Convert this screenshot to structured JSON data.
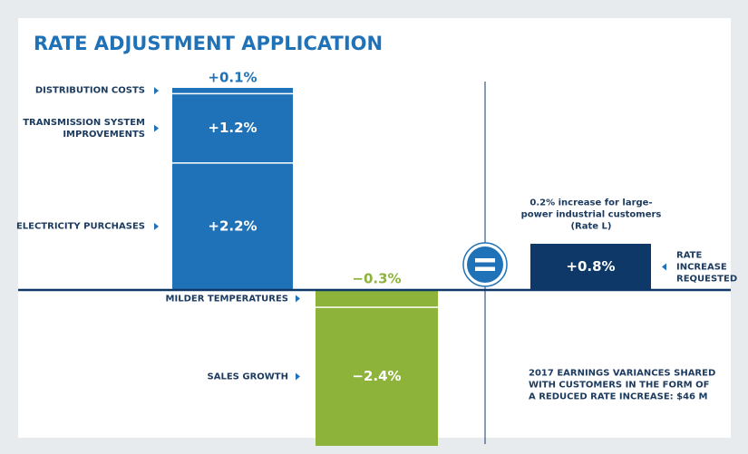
{
  "chart_data": {
    "type": "waterfall",
    "title": "RATE ADJUSTMENT APPLICATION",
    "ylim": [
      -2.7,
      3.5
    ],
    "increases": {
      "categories": [
        "ELECTRICITY PURCHASES",
        "TRANSMISSION SYSTEM IMPROVEMENTS",
        "DISTRIBUTION COSTS"
      ],
      "values": [
        2.2,
        1.2,
        0.1
      ],
      "value_labels": [
        "+2.2%",
        "+1.2%",
        "+0.1%"
      ],
      "color": "#1f72b8"
    },
    "decreases": {
      "categories": [
        "MILDER TEMPERATURES",
        "SALES GROWTH"
      ],
      "values": [
        -0.3,
        -2.4
      ],
      "value_labels": [
        "−0.3%",
        "−2.4%"
      ],
      "color": "#8db33b"
    },
    "result": {
      "name": "RATE INCREASE REQUESTED",
      "value": 0.8,
      "value_label": "+0.8%",
      "color": "#0d3868"
    },
    "annotations": [
      "0.2% increase for large-power industrial customers (Rate L)",
      "2017 EARNINGS VARIANCES SHARED WITH CUSTOMERS IN THE FORM OF A REDUCED RATE INCREASE: $46 M"
    ]
  }
}
